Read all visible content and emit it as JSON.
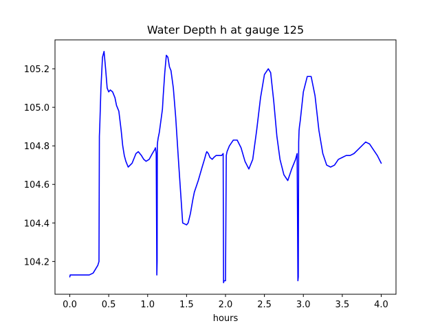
{
  "chart_data": {
    "type": "line",
    "title": "Water Depth h at gauge 125",
    "xlabel": "hours",
    "ylabel": "",
    "xlim": [
      -0.19,
      4.19
    ],
    "ylim": [
      104.03,
      105.35
    ],
    "x_ticks": [
      0.0,
      0.5,
      1.0,
      1.5,
      2.0,
      2.5,
      3.0,
      3.5,
      4.0
    ],
    "x_tick_labels": [
      "0.0",
      "0.5",
      "1.0",
      "1.5",
      "2.0",
      "2.5",
      "3.0",
      "3.5",
      "4.0"
    ],
    "y_ticks": [
      104.2,
      104.4,
      104.6,
      104.8,
      105.0,
      105.2
    ],
    "y_tick_labels": [
      "104.2",
      "104.4",
      "104.6",
      "104.8",
      "105.0",
      "105.2"
    ],
    "grid": false,
    "line_color": "#0000ff",
    "series": [
      {
        "x": [
          0.0,
          0.005,
          0.05,
          0.1,
          0.2,
          0.25,
          0.3,
          0.33,
          0.36,
          0.375,
          0.38,
          0.385,
          0.4,
          0.42,
          0.44,
          0.46,
          0.48,
          0.5,
          0.52,
          0.55,
          0.58,
          0.6,
          0.63,
          0.66,
          0.68,
          0.7,
          0.72,
          0.75,
          0.8,
          0.85,
          0.88,
          0.92,
          0.95,
          0.98,
          1.02,
          1.06,
          1.09,
          1.1,
          1.11,
          1.118,
          1.122,
          1.124,
          1.128,
          1.135,
          1.15,
          1.18,
          1.19,
          1.2,
          1.22,
          1.24,
          1.26,
          1.28,
          1.3,
          1.33,
          1.36,
          1.4,
          1.45,
          1.5,
          1.52,
          1.55,
          1.58,
          1.6,
          1.65,
          1.7,
          1.73,
          1.75,
          1.76,
          1.78,
          1.8,
          1.83,
          1.85,
          1.88,
          1.92,
          1.95,
          1.97,
          1.975,
          1.98,
          1.985,
          2.0,
          2.01,
          2.015,
          2.02,
          2.05,
          2.1,
          2.15,
          2.2,
          2.25,
          2.3,
          2.35,
          2.4,
          2.45,
          2.5,
          2.55,
          2.58,
          2.62,
          2.66,
          2.7,
          2.75,
          2.8,
          2.85,
          2.9,
          2.92,
          2.93,
          2.935,
          2.94,
          2.945,
          2.95,
          2.96,
          3.0,
          3.05,
          3.1,
          3.15,
          3.2,
          3.25,
          3.3,
          3.35,
          3.4,
          3.45,
          3.5,
          3.55,
          3.6,
          3.65,
          3.7,
          3.75,
          3.8,
          3.85,
          3.9,
          3.95,
          4.0
        ],
        "values": [
          104.12,
          104.13,
          104.13,
          104.13,
          104.13,
          104.13,
          104.14,
          104.16,
          104.18,
          104.2,
          104.85,
          104.9,
          105.1,
          105.26,
          105.29,
          105.2,
          105.1,
          105.08,
          105.09,
          105.08,
          105.05,
          105.01,
          104.98,
          104.88,
          104.8,
          104.75,
          104.72,
          104.69,
          104.71,
          104.76,
          104.77,
          104.75,
          104.73,
          104.72,
          104.73,
          104.76,
          104.78,
          104.79,
          104.76,
          104.13,
          104.2,
          104.8,
          104.82,
          104.84,
          104.87,
          104.96,
          104.99,
          105.06,
          105.18,
          105.27,
          105.26,
          105.21,
          105.19,
          105.1,
          104.95,
          104.7,
          104.4,
          104.39,
          104.4,
          104.45,
          104.52,
          104.56,
          104.62,
          104.69,
          104.73,
          104.76,
          104.77,
          104.76,
          104.74,
          104.73,
          104.74,
          104.75,
          104.75,
          104.75,
          104.76,
          104.09,
          104.1,
          104.1,
          104.1,
          104.75,
          104.76,
          104.77,
          104.8,
          104.83,
          104.83,
          104.79,
          104.72,
          104.68,
          104.73,
          104.88,
          105.05,
          105.17,
          105.2,
          105.18,
          105.03,
          104.85,
          104.73,
          104.65,
          104.62,
          104.68,
          104.73,
          104.76,
          104.1,
          104.12,
          104.82,
          104.88,
          104.9,
          104.93,
          105.08,
          105.16,
          105.16,
          105.06,
          104.88,
          104.76,
          104.7,
          104.69,
          104.7,
          104.73,
          104.74,
          104.75,
          104.75,
          104.76,
          104.78,
          104.8,
          104.82,
          104.81,
          104.78,
          104.75,
          104.71
        ]
      }
    ]
  }
}
